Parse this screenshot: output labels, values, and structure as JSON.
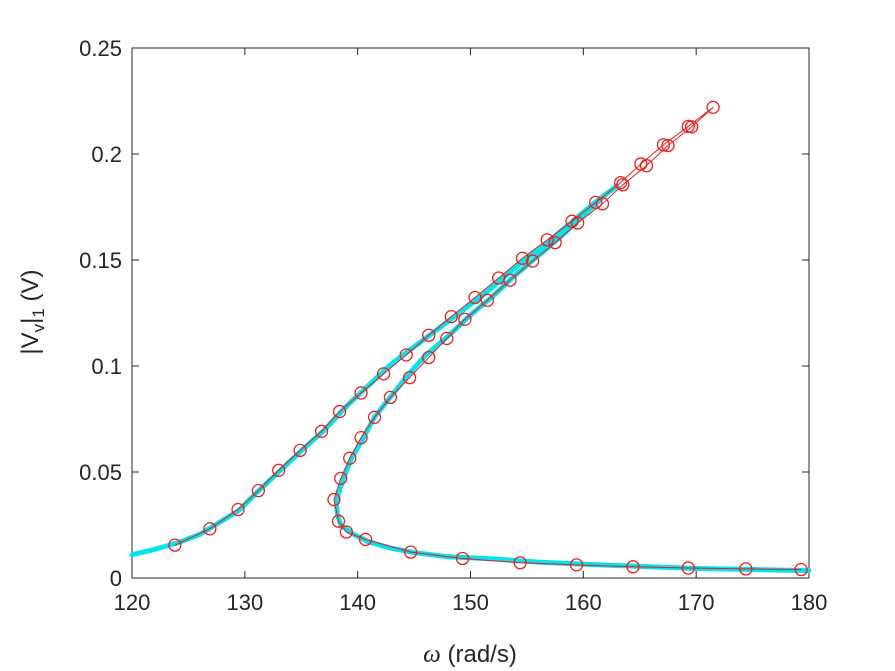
{
  "chart_data": {
    "type": "line",
    "title": "",
    "xlabel": "ω (rad/s)",
    "xlabel_symbol": "ω",
    "xlabel_unit": " (rad/s)",
    "ylabel": "|V_v|_1 (V)",
    "ylabel_parts": {
      "bar_left": "|",
      "main": "V",
      "sub1": "v",
      "bar_right": "|",
      "sub2": "1",
      "unit": " (V)"
    },
    "xlim": [
      120,
      180
    ],
    "ylim": [
      0,
      0.25
    ],
    "x_ticks": [
      120,
      130,
      140,
      150,
      160,
      170,
      180
    ],
    "x_tick_labels": [
      "120",
      "130",
      "140",
      "150",
      "160",
      "170",
      "180"
    ],
    "y_ticks": [
      0,
      0.05,
      0.1,
      0.15,
      0.2,
      0.25
    ],
    "y_tick_labels": [
      "0",
      "0.05",
      "0.1",
      "0.15",
      "0.2",
      "0.25"
    ],
    "grid": false,
    "legend": "none",
    "series": [
      {
        "style": "solid-thick",
        "color": "#00e5ee",
        "x": [
          120,
          122,
          124,
          126,
          128,
          129.5,
          131,
          133,
          135,
          137,
          139,
          141,
          143,
          145,
          147,
          149,
          151,
          153,
          155,
          157,
          159,
          161,
          163,
          162,
          160,
          158,
          156,
          154,
          152,
          150,
          148,
          146,
          144.5,
          143,
          141.5,
          140.5,
          139.5,
          138.8,
          138.3,
          138.1,
          138.2,
          138.5,
          139.5,
          141,
          143,
          145,
          148,
          152,
          156,
          160,
          165,
          170,
          175,
          180
        ],
        "y": [
          0.011,
          0.0135,
          0.0165,
          0.0205,
          0.027,
          0.032,
          0.04,
          0.05,
          0.06,
          0.0695,
          0.081,
          0.091,
          0.101,
          0.109,
          0.117,
          0.125,
          0.133,
          0.142,
          0.151,
          0.159,
          0.168,
          0.177,
          0.185,
          0.181,
          0.171,
          0.161,
          0.152,
          0.143,
          0.133,
          0.124,
          0.114,
          0.105,
          0.096,
          0.086,
          0.076,
          0.066,
          0.057,
          0.048,
          0.04,
          0.036,
          0.03,
          0.025,
          0.021,
          0.017,
          0.014,
          0.012,
          0.01,
          0.009,
          0.0075,
          0.0065,
          0.0055,
          0.0045,
          0.004,
          0.0035
        ]
      },
      {
        "style": "thin-line-circles",
        "color": "#ee1c1c",
        "x": [
          123.8,
          126.9,
          129.4,
          131.2,
          133.0,
          134.9,
          136.8,
          138.4,
          140.3,
          142.3,
          144.3,
          146.3,
          148.3,
          150.4,
          152.5,
          154.6,
          156.8,
          159.0,
          161.1,
          163.3,
          165.1,
          167.1,
          169.3,
          171.5,
          169.6,
          167.5,
          165.6,
          163.5,
          161.7,
          159.5,
          157.5,
          155.5,
          153.5,
          151.5,
          149.5,
          147.9,
          146.3,
          144.6,
          142.9,
          141.5,
          140.3,
          139.3,
          138.5,
          137.9,
          138.3,
          139.0,
          140.7,
          144.7,
          149.3,
          154.4,
          159.4,
          164.4,
          169.3,
          174.4,
          179.3
        ],
        "y": [
          0.0155,
          0.0232,
          0.0323,
          0.0412,
          0.0508,
          0.0602,
          0.0692,
          0.0785,
          0.0873,
          0.0963,
          0.1052,
          0.1145,
          0.1233,
          0.1323,
          0.1415,
          0.1508,
          0.1595,
          0.1683,
          0.1772,
          0.1865,
          0.1953,
          0.2043,
          0.213,
          0.222,
          0.2128,
          0.204,
          0.1945,
          0.1855,
          0.1765,
          0.1675,
          0.1582,
          0.1495,
          0.1405,
          0.131,
          0.122,
          0.113,
          0.104,
          0.0945,
          0.0852,
          0.0758,
          0.0662,
          0.0565,
          0.047,
          0.037,
          0.0268,
          0.0217,
          0.0182,
          0.0122,
          0.0092,
          0.0072,
          0.0062,
          0.0053,
          0.0047,
          0.0043,
          0.004
        ]
      }
    ]
  }
}
